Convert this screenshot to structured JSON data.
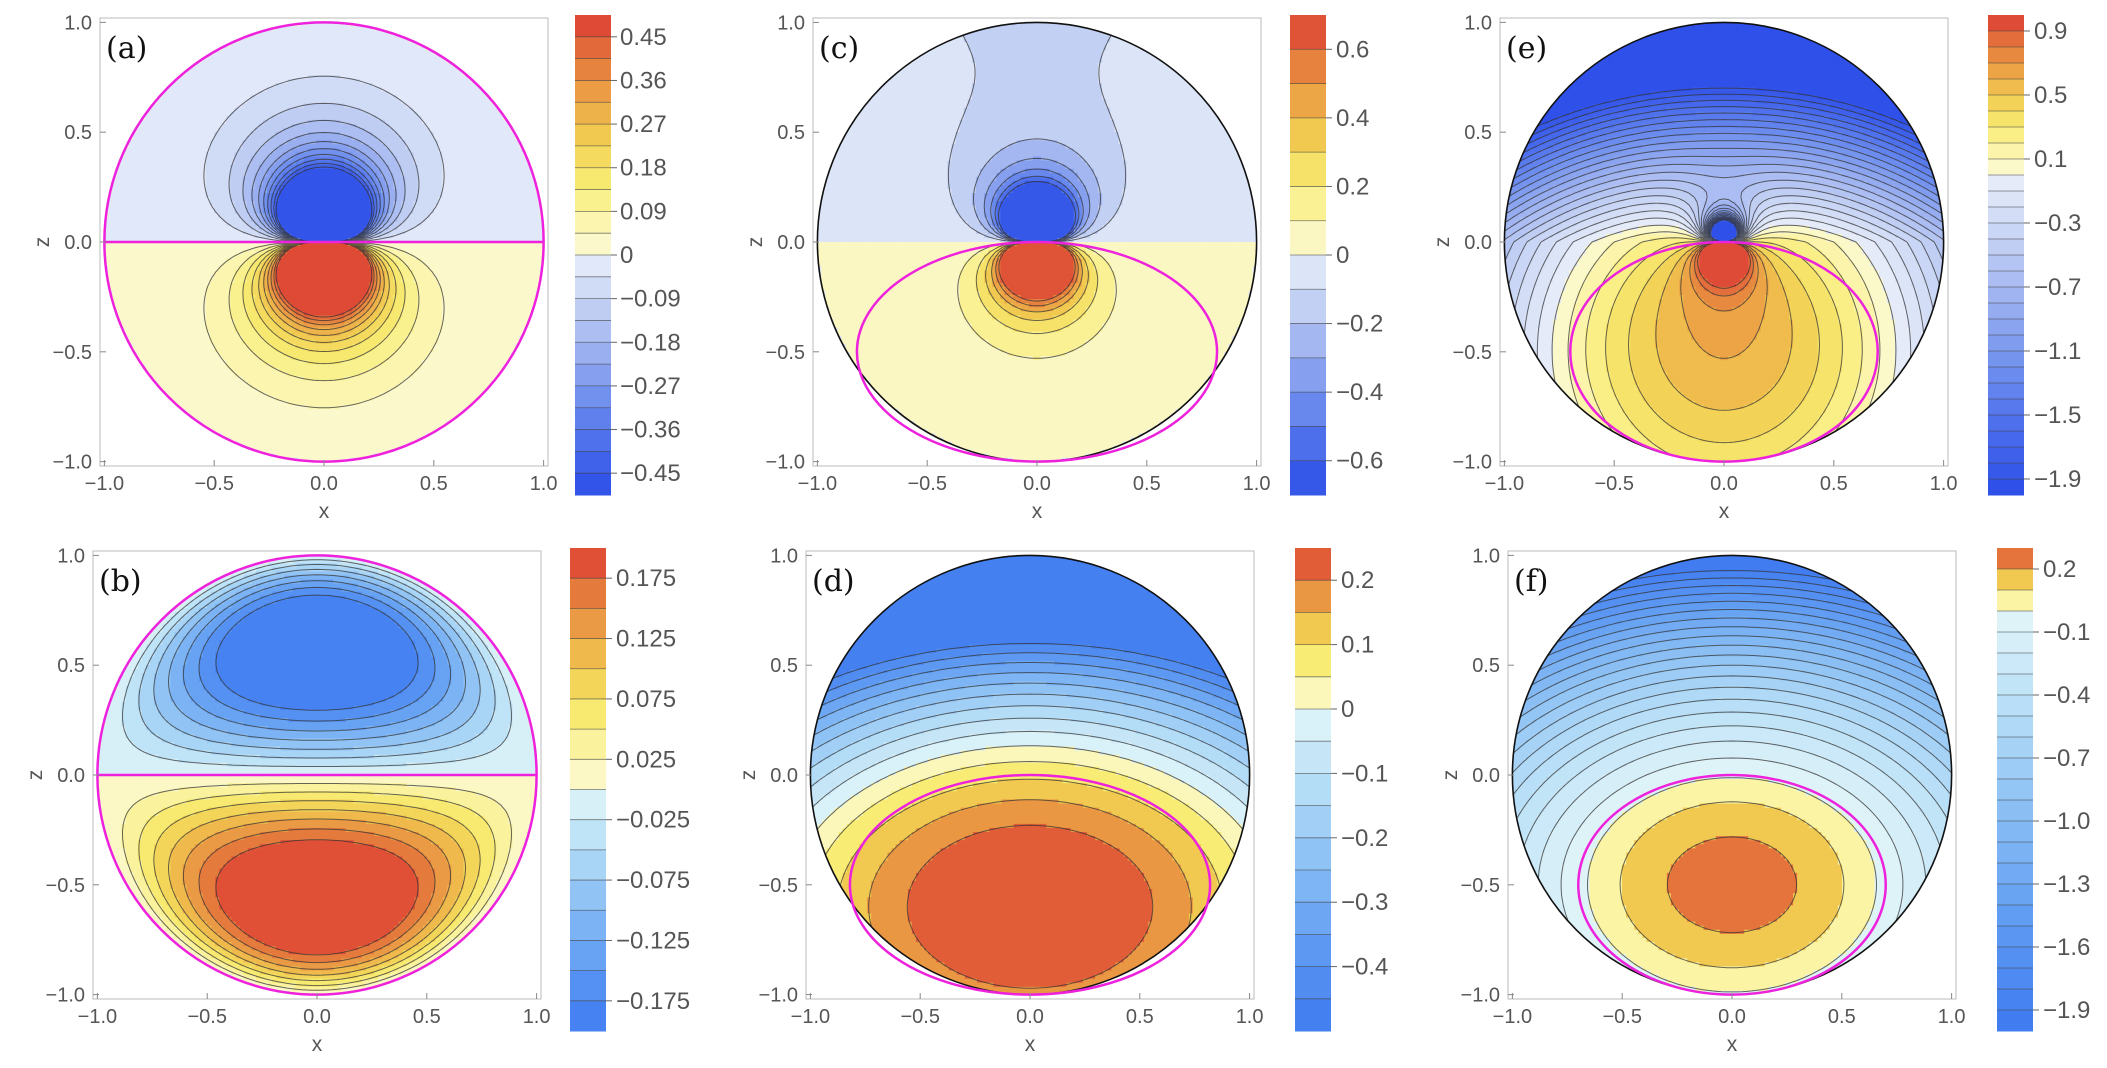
{
  "chart_data": [
    {
      "type": "contour",
      "label": "(a)",
      "xlabel": "x",
      "ylabel": "z",
      "xlim": [
        -1.0,
        1.0
      ],
      "ylim": [
        -1.0,
        1.0
      ],
      "xticks": [
        "−1.0",
        "−0.5",
        "0.0",
        "0.5",
        "1.0"
      ],
      "yticks": [
        "−1.0",
        "−0.5",
        "0.0",
        "0.5",
        "1.0"
      ],
      "domain": "unit disk",
      "magenta_contour": "unit circle and z = 0 line",
      "colorbar": {
        "ticks": [
          "0.45",
          "0.36",
          "0.27",
          "0.18",
          "0.09",
          "0",
          "−0.09",
          "−0.18",
          "−0.27",
          "−0.36",
          "−0.45"
        ],
        "range": [
          -0.495,
          0.495
        ],
        "levels": 22
      }
    },
    {
      "type": "contour",
      "label": "(b)",
      "xlabel": "x",
      "ylabel": "z",
      "xlim": [
        -1.0,
        1.0
      ],
      "ylim": [
        -1.0,
        1.0
      ],
      "xticks": [
        "−1.0",
        "−0.5",
        "0.0",
        "0.5",
        "1.0"
      ],
      "yticks": [
        "−1.0",
        "−0.5",
        "0.0",
        "0.5",
        "1.0"
      ],
      "domain": "unit disk",
      "magenta_contour": "unit circle and z = 0 line",
      "colorbar": {
        "ticks": [
          "0.175",
          "0.125",
          "0.075",
          "0.025",
          "−0.025",
          "−0.075",
          "−0.125",
          "−0.175"
        ],
        "range": [
          -0.2,
          0.2
        ],
        "levels": 16
      }
    },
    {
      "type": "contour",
      "label": "(c)",
      "xlabel": "x",
      "ylabel": "z",
      "xlim": [
        -1.0,
        1.0
      ],
      "ylim": [
        -1.0,
        1.0
      ],
      "xticks": [
        "−1.0",
        "−0.5",
        "0.0",
        "0.5",
        "1.0"
      ],
      "yticks": [
        "−1.0",
        "−0.5",
        "0.0",
        "0.5",
        "1.0"
      ],
      "domain": "unit disk",
      "magenta_contour": "closed curve in lower half, z from −1.0 to 0.0",
      "colorbar": {
        "ticks": [
          "0.6",
          "0.4",
          "0.2",
          "0",
          "−0.2",
          "−0.4",
          "−0.6"
        ],
        "range": [
          -0.7,
          0.7
        ],
        "levels": 14
      }
    },
    {
      "type": "contour",
      "label": "(d)",
      "xlabel": "x",
      "ylabel": "z",
      "xlim": [
        -1.0,
        1.0
      ],
      "ylim": [
        -1.0,
        1.0
      ],
      "xticks": [
        "−1.0",
        "−0.5",
        "0.0",
        "0.5",
        "1.0"
      ],
      "yticks": [
        "−1.0",
        "−0.5",
        "0.0",
        "0.5",
        "1.0"
      ],
      "domain": "unit disk",
      "magenta_contour": "closed curve in lower half, z from −1.0 to 0.0",
      "colorbar": {
        "ticks": [
          "0.2",
          "0.1",
          "0",
          "−0.1",
          "−0.2",
          "−0.3",
          "−0.4"
        ],
        "range": [
          -0.5,
          0.25
        ],
        "levels": 15
      }
    },
    {
      "type": "contour",
      "label": "(e)",
      "xlabel": "x",
      "ylabel": "z",
      "xlim": [
        -1.0,
        1.0
      ],
      "ylim": [
        -1.0,
        1.0
      ],
      "xticks": [
        "−1.0",
        "−0.5",
        "0.0",
        "0.5",
        "1.0"
      ],
      "yticks": [
        "−1.0",
        "−0.5",
        "0.0",
        "0.5",
        "1.0"
      ],
      "domain": "unit disk",
      "magenta_contour": "closed curve in lower half, z from −1.0 to 0.0",
      "colorbar": {
        "ticks": [
          "0.9",
          "0.5",
          "0.1",
          "−0.3",
          "−0.7",
          "−1.1",
          "−1.5",
          "−1.9"
        ],
        "range": [
          -2.0,
          1.0
        ],
        "levels": 30
      }
    },
    {
      "type": "contour",
      "label": "(f)",
      "xlabel": "x",
      "ylabel": "z",
      "xlim": [
        -1.0,
        1.0
      ],
      "ylim": [
        -1.0,
        1.0
      ],
      "xticks": [
        "−1.0",
        "−0.5",
        "0.0",
        "0.5",
        "1.0"
      ],
      "yticks": [
        "−1.0",
        "−0.5",
        "0.0",
        "0.5",
        "1.0"
      ],
      "domain": "unit disk",
      "magenta_contour": "closed curve in lower half, z from −1.0 to 0.0",
      "colorbar": {
        "ticks": [
          "0.2",
          "−0.1",
          "−0.4",
          "−0.7",
          "−1.0",
          "−1.3",
          "−1.6",
          "−1.9"
        ],
        "range": [
          -2.0,
          0.3
        ],
        "levels": 23
      }
    }
  ],
  "colors": {
    "magenta": "#ee22dd",
    "scale_blue": [
      "#2b4de8",
      "#4a6cec",
      "#7090ee",
      "#9bb0f0",
      "#c5d2f4",
      "#e9eefa"
    ],
    "scale_cyan": [
      "#3e7af0",
      "#5d99f2",
      "#86bcf4",
      "#b3dcf7",
      "#e3f6f8"
    ],
    "scale_warm": [
      "#fbfbe8",
      "#fbf6b4",
      "#f8ec74",
      "#f2cf52",
      "#eca446",
      "#e4773c",
      "#dc3a33"
    ]
  }
}
